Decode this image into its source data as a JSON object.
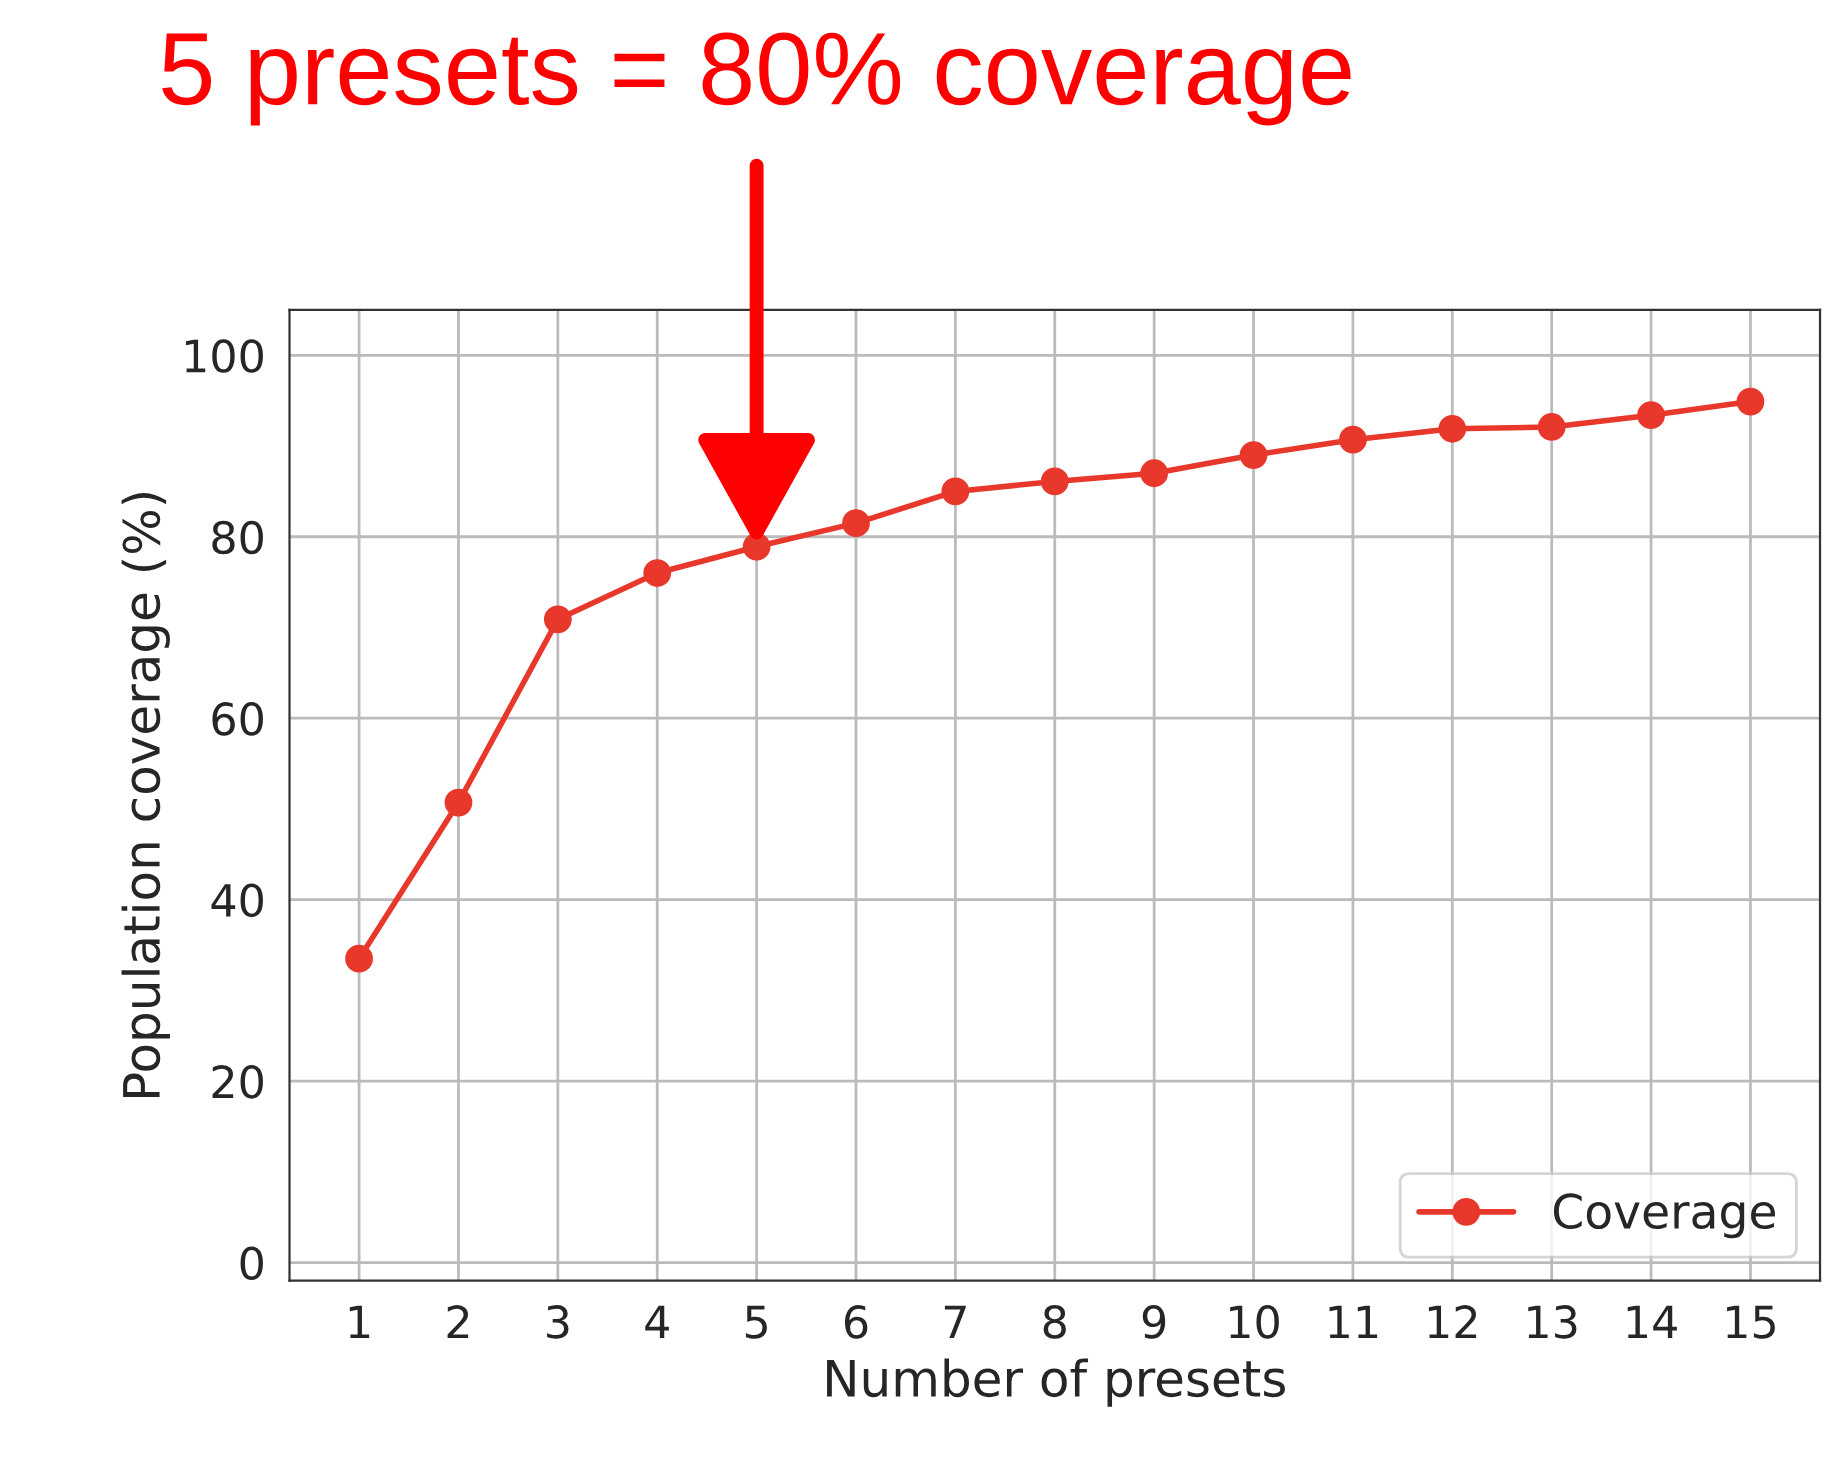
{
  "chart_data": {
    "type": "line",
    "xlabel": "Number of presets",
    "ylabel": "Population coverage (%)",
    "x": [
      1,
      2,
      3,
      4,
      5,
      6,
      7,
      8,
      9,
      10,
      11,
      12,
      13,
      14,
      15
    ],
    "series": [
      {
        "name": "Coverage",
        "color": "#e8382c",
        "values": [
          33.5,
          50.7,
          70.9,
          76,
          78.9,
          81.5,
          85,
          86.1,
          87,
          89,
          90.7,
          91.9,
          92.1,
          93.4,
          94.9
        ]
      }
    ],
    "xlim": [
      0.3,
      15.7
    ],
    "xticks": [
      1,
      2,
      3,
      4,
      5,
      6,
      7,
      8,
      9,
      10,
      11,
      12,
      13,
      14,
      15
    ],
    "ylim": [
      -2,
      105
    ],
    "yticks": [
      0,
      20,
      40,
      60,
      80,
      100
    ],
    "annotations": [
      {
        "text": "5 presets = 80% coverage",
        "x": 5,
        "y": 78.9
      }
    ],
    "grid": true,
    "legend": "bottom right",
    "marker": "circle",
    "line_style": "solid"
  }
}
